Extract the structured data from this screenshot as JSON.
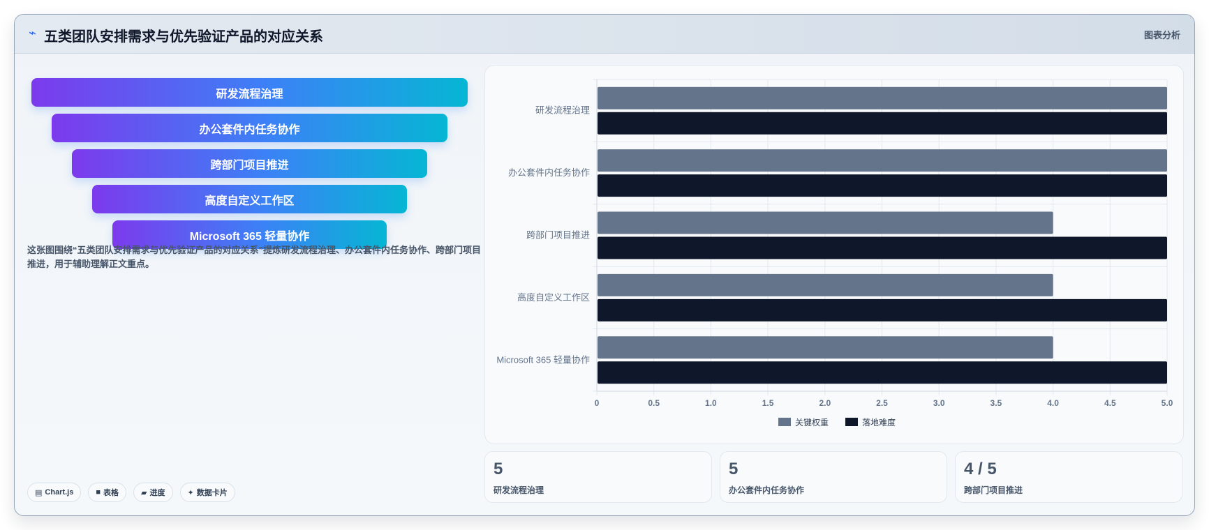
{
  "header": {
    "icon": "chart-line-icon",
    "title": "五类团队安排需求与优先验证产品的对应关系",
    "action_label": "图表分析"
  },
  "funnel": {
    "stages": [
      "研发流程治理",
      "办公套件内任务协作",
      "跨部门项目推进",
      "高度自定义工作区",
      "Microsoft 365 轻量协作"
    ]
  },
  "description": "这张图围绕“五类团队安排需求与优先验证产品的对应关系”提炼研发流程治理、办公套件内任务协作、跨部门项目推进，用于辅助理解正文重点。",
  "tags": [
    {
      "icon": "chart-icon",
      "glyph": "▤",
      "label": "Chart.js"
    },
    {
      "icon": "table-icon",
      "glyph": "■",
      "label": "表格"
    },
    {
      "icon": "progress-icon",
      "glyph": "▰",
      "label": "进度"
    },
    {
      "icon": "data-card-icon",
      "glyph": "✦",
      "label": "数据卡片"
    }
  ],
  "stats": [
    {
      "value": "5",
      "label": "研发流程治理"
    },
    {
      "value": "5",
      "label": "办公套件内任务协作"
    },
    {
      "value": "4 / 5",
      "label": "跨部门项目推进"
    }
  ],
  "colors": {
    "series_weight": "#64748b",
    "series_difficulty": "#0f172a",
    "grid": "#e2e8f0",
    "axis_text": "#64748b"
  },
  "chart_data": {
    "type": "bar",
    "orientation": "horizontal",
    "categories": [
      "研发流程治理",
      "办公套件内任务协作",
      "跨部门项目推进",
      "高度自定义工作区",
      "Microsoft 365 轻量协作"
    ],
    "series": [
      {
        "name": "关键权重",
        "values": [
          5,
          5,
          4,
          4,
          4
        ]
      },
      {
        "name": "落地难度",
        "values": [
          5,
          5,
          5,
          5,
          5
        ]
      }
    ],
    "xlim": [
      0,
      5
    ],
    "xticks": [
      "0",
      "0.5",
      "1.0",
      "1.5",
      "2.0",
      "2.5",
      "3.0",
      "3.5",
      "4.0",
      "4.5",
      "5.0"
    ],
    "legend_position": "bottom",
    "grid": true
  }
}
